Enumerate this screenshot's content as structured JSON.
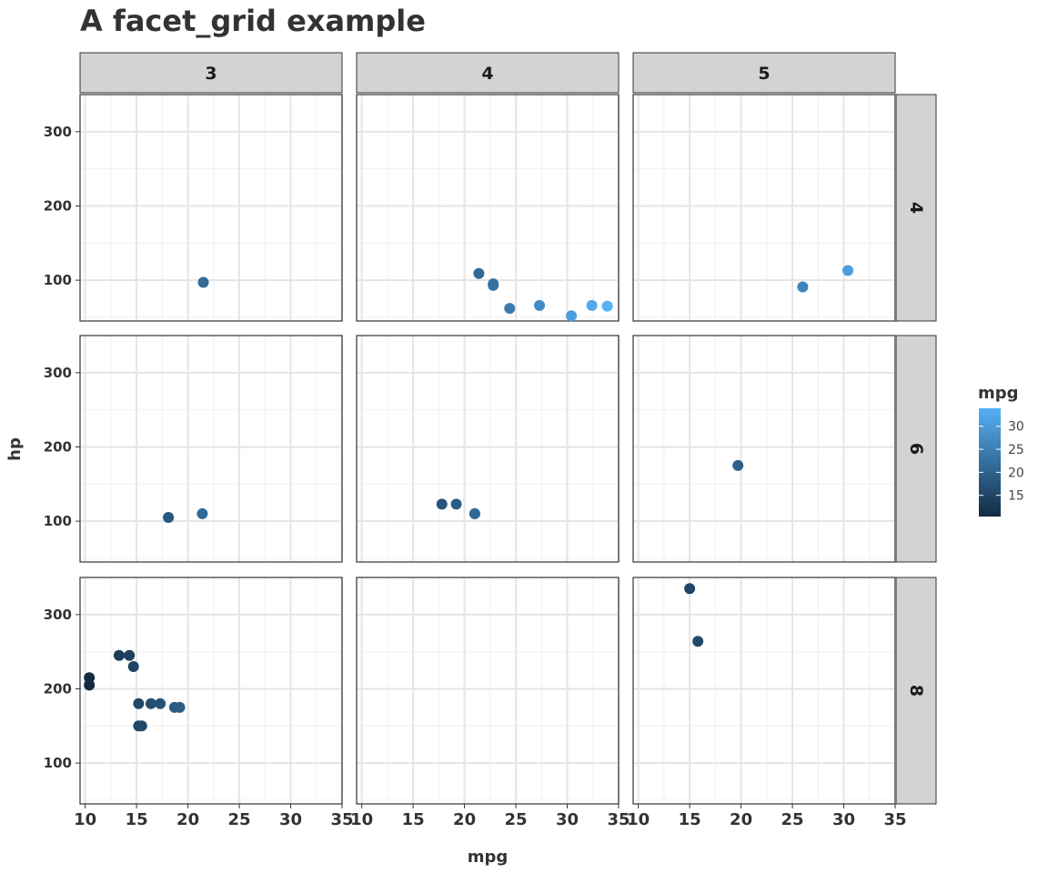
{
  "chart_data": {
    "type": "scatter",
    "title": "A facet_grid example",
    "xlabel": "mpg",
    "ylabel": "hp",
    "xlim": [
      9.5,
      35
    ],
    "ylim": [
      45,
      350
    ],
    "x_ticks": [
      "10",
      "15",
      "20",
      "25",
      "30",
      "35"
    ],
    "y_ticks": [
      "100",
      "200",
      "300"
    ],
    "grid": true,
    "facet_cols": [
      "3",
      "4",
      "5"
    ],
    "facet_rows": [
      "4",
      "6",
      "8"
    ],
    "legend": {
      "title": "mpg",
      "position": "right",
      "min": 10.4,
      "max": 33.9,
      "ticks": [
        "15",
        "20",
        "25",
        "30"
      ],
      "color_low": "#132B43",
      "color_high": "#56B1F7"
    },
    "panels": [
      {
        "row": "4",
        "col": "3",
        "points": [
          [
            21.5,
            97
          ]
        ]
      },
      {
        "row": "4",
        "col": "4",
        "points": [
          [
            21.4,
            109
          ],
          [
            22.8,
            95
          ],
          [
            22.8,
            93
          ],
          [
            24.4,
            62
          ],
          [
            27.3,
            66
          ],
          [
            30.4,
            52
          ],
          [
            32.4,
            66
          ],
          [
            33.9,
            65
          ]
        ]
      },
      {
        "row": "4",
        "col": "5",
        "points": [
          [
            26.0,
            91
          ],
          [
            30.4,
            113
          ]
        ]
      },
      {
        "row": "6",
        "col": "3",
        "points": [
          [
            18.1,
            105
          ],
          [
            21.4,
            110
          ]
        ]
      },
      {
        "row": "6",
        "col": "4",
        "points": [
          [
            17.8,
            123
          ],
          [
            19.2,
            123
          ],
          [
            21.0,
            110
          ],
          [
            21.0,
            110
          ]
        ]
      },
      {
        "row": "6",
        "col": "5",
        "points": [
          [
            19.7,
            175
          ]
        ]
      },
      {
        "row": "8",
        "col": "3",
        "points": [
          [
            10.4,
            215
          ],
          [
            10.4,
            205
          ],
          [
            13.3,
            245
          ],
          [
            14.3,
            245
          ],
          [
            14.7,
            230
          ],
          [
            15.2,
            180
          ],
          [
            15.2,
            150
          ],
          [
            15.5,
            150
          ],
          [
            16.4,
            180
          ],
          [
            17.3,
            180
          ],
          [
            18.7,
            175
          ],
          [
            19.2,
            175
          ]
        ]
      },
      {
        "row": "8",
        "col": "4",
        "points": []
      },
      {
        "row": "8",
        "col": "5",
        "points": [
          [
            15.0,
            335
          ],
          [
            15.8,
            264
          ]
        ]
      }
    ]
  }
}
